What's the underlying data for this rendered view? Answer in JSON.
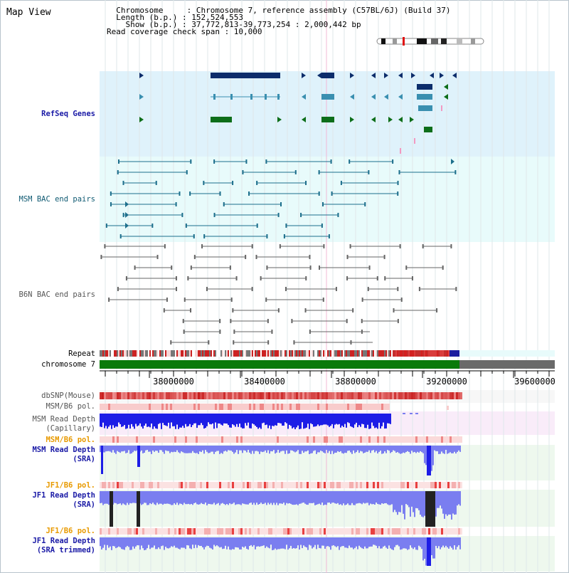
{
  "header": {
    "title": "Map View",
    "info_lines": [
      "  Chromosome     : Chromosome 7, reference assembly (C57BL/6J) (Build 37)",
      "  Length (b.p.) : 152,524,553",
      "    Show (b.p.) : 37,772,813-39,773,254 : 2,000,442 bp",
      "Read coverage check span : 10,000"
    ]
  },
  "tracks": {
    "refseq": "RefSeq Genes",
    "msm_bac": "MSM BAC end pairs",
    "b6n_bac": "B6N BAC end pairs",
    "repeat": "Repeat",
    "chromosome": "chromosome 7",
    "dbsnp": "dbSNP(Mouse)",
    "msm_b6_pol": "MSM/B6 pol.",
    "msm_depth_cap_1": "MSM Read Depth",
    "msm_depth_cap_2": "(Capillary)",
    "msm_b6_pol2": "MSM/B6 pol.",
    "msm_depth_sra_1": "MSM Read Depth",
    "msm_depth_sra_2": "(SRA)",
    "jf1_b6_pol": "JF1/B6 pol.",
    "jf1_depth_sra_1": "JF1 Read Depth",
    "jf1_depth_sra_2": "(SRA)",
    "jf1_b6_pol2": "JF1/B6 pol.",
    "jf1_depth_trim_1": "JF1 Read Depth",
    "jf1_depth_trim_2": "(SRA trimmed)"
  },
  "axis": {
    "ticks": [
      "38000000",
      "38400000",
      "38800000",
      "39200000",
      "39600000"
    ]
  },
  "colors": {
    "refseq_bg": "#dff2fb",
    "bac_bg": "#e8fbfb",
    "gene_navy": "#0c2d6b",
    "gene_teal": "#3a8fb0",
    "gene_green": "#0d6e1a",
    "depth_blue": "#1d1de6",
    "depth_light": "#7a7ef0",
    "snp_red": "#f06a6a"
  }
}
